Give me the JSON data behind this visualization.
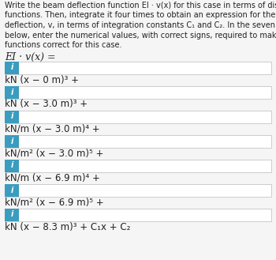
{
  "title_lines": [
    "Write the beam deflection function EI · v(x) for this case in terms of discontinuity",
    "functions. Then, integrate it four times to obtain an expression for the beam",
    "deflection, v, in terms of integration constants C₁ and C₂. In the seven input fields",
    "below, enter the numerical values, with correct signs, required to make these",
    "functions correct for this case."
  ],
  "eq_label": "EI · v(x) =",
  "rows": [
    {
      "label": "kN (x − 0 m)³ +"
    },
    {
      "label": "kN (x − 3.0 m)³ +"
    },
    {
      "label": "kN/m (x − 3.0 m)⁴ +"
    },
    {
      "label": "kN/m² (x − 3.0 m)⁵ +"
    },
    {
      "label": "kN/m (x − 6.9 m)⁴ +"
    },
    {
      "label": "kN/m² (x − 6.9 m)⁵ +"
    },
    {
      "label": "kN (x − 8.3 m)³ + C₁x + C₂"
    }
  ],
  "button_color": "#3a9cbf",
  "button_text": "i",
  "button_text_color": "#ffffff",
  "bg_color": "#f5f5f5",
  "text_color": "#222222",
  "input_bg": "#ffffff",
  "input_border": "#cccccc",
  "font_size_title": 7.0,
  "font_size_label": 8.5,
  "font_size_eq": 9.0
}
